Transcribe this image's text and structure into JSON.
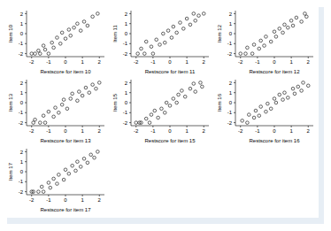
{
  "chart_data": [
    {
      "type": "scatter",
      "x_label": "Restscore for item 10",
      "y_label": "Item 10",
      "marker": "circle",
      "color": "#000000",
      "xlim": [
        -2.3,
        2.3
      ],
      "ylim": [
        -2.3,
        2.3
      ],
      "xticks": [
        -2,
        -1,
        0,
        1,
        2
      ],
      "yticks": [
        -2,
        -1,
        0,
        1,
        2
      ],
      "x": [
        -2,
        -1.8,
        -1.6,
        -1.5,
        -1.3,
        -1.2,
        -1,
        -0.8,
        -0.7,
        -0.5,
        -0.3,
        -0.2,
        0,
        0.2,
        0.3,
        0.5,
        0.7,
        0.9,
        1.1,
        1.3,
        1.6,
        1.9
      ],
      "values": [
        -2,
        -2,
        -1.7,
        -2,
        -1.2,
        -1.6,
        -2,
        -0.9,
        -1.4,
        -0.4,
        -1,
        0.1,
        -0.5,
        0.4,
        -0.2,
        0.6,
        1,
        0.3,
        1.2,
        0.8,
        1.7,
        2
      ]
    },
    {
      "type": "scatter",
      "x_label": "Restscore for item 11",
      "y_label": "Item 11",
      "marker": "circle",
      "color": "#000000",
      "xlim": [
        -2.3,
        2.3
      ],
      "ylim": [
        -2.3,
        2.3
      ],
      "xticks": [
        -2,
        -1,
        0,
        1,
        2
      ],
      "yticks": [
        -2,
        -1,
        0,
        1,
        2
      ],
      "x": [
        -1.9,
        -1.7,
        -1.5,
        -1.4,
        -1.1,
        -1,
        -0.8,
        -0.6,
        -0.4,
        -0.3,
        -0.1,
        0.1,
        0.2,
        0.4,
        0.6,
        0.8,
        1,
        1.2,
        1.4,
        1.5,
        1.7,
        2
      ],
      "values": [
        -2,
        -1.5,
        -2,
        -0.8,
        -1.3,
        -2,
        -0.6,
        -1.1,
        0,
        -0.9,
        0.3,
        -0.4,
        0.7,
        0.1,
        1.1,
        0.5,
        1.5,
        0.9,
        2,
        1.3,
        1.8,
        2
      ]
    },
    {
      "type": "scatter",
      "x_label": "Restscore for item 12",
      "y_label": "Item 12",
      "marker": "circle",
      "color": "#000000",
      "xlim": [
        -2.3,
        2.3
      ],
      "ylim": [
        -2.3,
        2.3
      ],
      "xticks": [
        -2,
        -1,
        0,
        1,
        2
      ],
      "yticks": [
        -2,
        -1,
        0,
        1,
        2
      ],
      "x": [
        -2,
        -1.7,
        -1.6,
        -1.3,
        -1.2,
        -0.9,
        -0.8,
        -0.6,
        -0.5,
        -0.2,
        0,
        0.1,
        0.3,
        0.5,
        0.6,
        0.8,
        1,
        1.1,
        1.3,
        1.6,
        1.8,
        1.9
      ],
      "values": [
        -2,
        -2,
        -1.4,
        -2,
        -1.1,
        -1.5,
        -0.7,
        -1.2,
        -0.3,
        -0.8,
        0.2,
        -0.3,
        0.5,
        0.1,
        0.9,
        0.6,
        1.3,
        0.8,
        1.6,
        1.2,
        2,
        1.7
      ]
    },
    {
      "type": "scatter",
      "x_label": "Restscore for item 13",
      "y_label": "Item 13",
      "marker": "circle",
      "color": "#000000",
      "xlim": [
        -2.3,
        2.3
      ],
      "ylim": [
        -2.3,
        2.3
      ],
      "xticks": [
        -2,
        -1,
        0,
        1,
        2
      ],
      "yticks": [
        -2,
        -1,
        0,
        1,
        2
      ],
      "x": [
        -1.9,
        -1.8,
        -1.5,
        -1.3,
        -1.2,
        -1,
        -0.7,
        -0.6,
        -0.4,
        -0.2,
        -0.1,
        0.1,
        0.3,
        0.4,
        0.7,
        0.8,
        1,
        1.2,
        1.4,
        1.6,
        1.8,
        2
      ],
      "values": [
        -2,
        -1.7,
        -2,
        -1.3,
        -2,
        -0.9,
        -1.4,
        -0.5,
        -1,
        -0.2,
        0.3,
        -0.6,
        0.4,
        0.9,
        0.2,
        1.1,
        0.7,
        1.5,
        1,
        1.8,
        1.4,
        2
      ]
    },
    {
      "type": "scatter",
      "x_label": "Restscore for item 15",
      "y_label": "Item 15",
      "marker": "circle",
      "color": "#000000",
      "xlim": [
        -2.3,
        2.3
      ],
      "ylim": [
        -2.3,
        2.3
      ],
      "xticks": [
        -2,
        -1,
        0,
        1,
        2
      ],
      "yticks": [
        -2,
        -1,
        0,
        1,
        2
      ],
      "x": [
        -2,
        -1.8,
        -1.7,
        -1.4,
        -1.2,
        -1.1,
        -0.9,
        -0.7,
        -0.5,
        -0.3,
        -0.2,
        0,
        0.2,
        0.4,
        0.5,
        0.7,
        0.9,
        1.2,
        1.4,
        1.5,
        1.8,
        1.9
      ],
      "values": [
        -2,
        -2,
        -2,
        -1.6,
        -2,
        -1.2,
        -0.8,
        -1.5,
        -0.6,
        -1,
        0,
        -0.3,
        0.4,
        0,
        0.8,
        1.2,
        0.6,
        1.4,
        1.9,
        1.1,
        2,
        1.6
      ]
    },
    {
      "type": "scatter",
      "x_label": "Restscore for item 16",
      "y_label": "Item 16",
      "marker": "circle",
      "color": "#000000",
      "xlim": [
        -2.3,
        2.3
      ],
      "ylim": [
        -2.3,
        2.3
      ],
      "xticks": [
        -2,
        -1,
        0,
        1,
        2
      ],
      "yticks": [
        -2,
        -1,
        0,
        1,
        2
      ],
      "x": [
        -1.9,
        -1.6,
        -1.5,
        -1.2,
        -1.1,
        -0.9,
        -0.8,
        -0.5,
        -0.4,
        -0.2,
        0,
        0.1,
        0.3,
        0.5,
        0.6,
        0.8,
        1.1,
        1.2,
        1.4,
        1.6,
        1.7,
        2
      ],
      "values": [
        -1.8,
        -2,
        -1.2,
        -1.5,
        -0.8,
        -1.3,
        -0.4,
        -0.9,
        -0.1,
        -0.6,
        0.4,
        0,
        0.8,
        0.3,
        1,
        0.5,
        1.4,
        0.9,
        1.6,
        1.2,
        2,
        1.7
      ]
    },
    {
      "type": "scatter",
      "x_label": "Restscore for item 17",
      "y_label": "Item 17",
      "marker": "circle",
      "color": "#000000",
      "xlim": [
        -2.3,
        2.3
      ],
      "ylim": [
        -2.3,
        2.3
      ],
      "xticks": [
        -2,
        -1,
        0,
        1,
        2
      ],
      "yticks": [
        -2,
        -1,
        0,
        1,
        2
      ],
      "x": [
        -2,
        -1.9,
        -1.6,
        -1.4,
        -1.3,
        -1,
        -0.9,
        -0.7,
        -0.5,
        -0.4,
        -0.1,
        0,
        0.2,
        0.4,
        0.6,
        0.7,
        0.9,
        1.1,
        1.3,
        1.5,
        1.7,
        1.9
      ],
      "values": [
        -2,
        -2,
        -2,
        -1.5,
        -2,
        -1.1,
        -1.6,
        -0.7,
        -1.2,
        -0.3,
        -0.8,
        0.2,
        -0.2,
        0.6,
        0.1,
        1,
        0.5,
        1.3,
        0.9,
        1.7,
        1.4,
        2
      ]
    }
  ]
}
